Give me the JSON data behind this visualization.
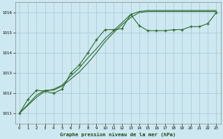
{
  "title": "Graphe pression niveau de la mer (hPa)",
  "background_color": "#cde8f0",
  "grid_color": "#aaccdd",
  "line_color": "#2d6a2d",
  "xlim": [
    -0.5,
    23.5
  ],
  "ylim": [
    1010.5,
    1016.5
  ],
  "xticks": [
    0,
    1,
    2,
    3,
    4,
    5,
    6,
    7,
    8,
    9,
    10,
    11,
    12,
    13,
    14,
    15,
    16,
    17,
    18,
    19,
    20,
    21,
    22,
    23
  ],
  "yticks": [
    1011,
    1012,
    1013,
    1014,
    1015,
    1016
  ],
  "line1_x": [
    0,
    1,
    2,
    3,
    4,
    5,
    6,
    7,
    8,
    9,
    10,
    11,
    12,
    13,
    14,
    15,
    16,
    17,
    18,
    19,
    20,
    21,
    22,
    23
  ],
  "line1_y": [
    1011.0,
    1011.7,
    1012.15,
    1012.1,
    1012.0,
    1012.2,
    1013.0,
    1013.4,
    1014.0,
    1014.65,
    1015.15,
    1015.15,
    1015.2,
    1015.9,
    1015.35,
    1015.1,
    1015.1,
    1015.1,
    1015.15,
    1015.15,
    1015.3,
    1015.3,
    1015.45,
    1016.0
  ],
  "line2_x": [
    0,
    2,
    3,
    4,
    5,
    6,
    7,
    8,
    9,
    10,
    11,
    12,
    13,
    14,
    15,
    16,
    17,
    18,
    19,
    20,
    21,
    22,
    23
  ],
  "line2_y": [
    1011.0,
    1011.8,
    1012.1,
    1012.2,
    1012.4,
    1012.85,
    1013.25,
    1013.75,
    1014.2,
    1014.7,
    1015.1,
    1015.5,
    1015.9,
    1016.05,
    1016.1,
    1016.1,
    1016.1,
    1016.1,
    1016.1,
    1016.1,
    1016.1,
    1016.1,
    1016.1
  ],
  "line3_x": [
    0,
    2,
    3,
    4,
    5,
    6,
    7,
    8,
    9,
    10,
    11,
    12,
    13,
    14,
    15,
    16,
    17,
    18,
    19,
    20,
    21,
    22,
    23
  ],
  "line3_y": [
    1011.0,
    1011.9,
    1012.15,
    1012.15,
    1012.35,
    1012.7,
    1013.05,
    1013.5,
    1014.0,
    1014.55,
    1015.0,
    1015.4,
    1015.75,
    1016.0,
    1016.05,
    1016.05,
    1016.05,
    1016.05,
    1016.05,
    1016.05,
    1016.05,
    1016.05,
    1016.05
  ]
}
